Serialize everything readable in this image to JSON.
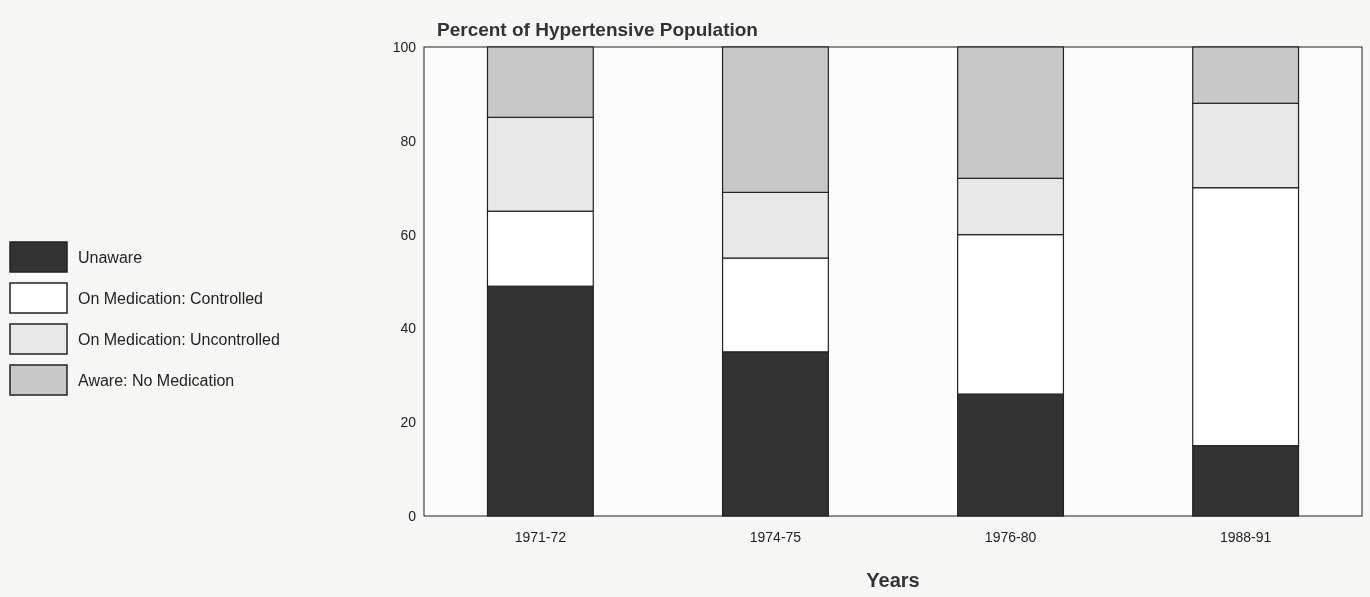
{
  "chart_data": {
    "type": "bar",
    "title": "Percent of Hypertensive Population",
    "xlabel": "Years",
    "categories": [
      "1971-72",
      "1974-75",
      "1976-80",
      "1988-91"
    ],
    "stacked": true,
    "legend": "left",
    "grid": false,
    "ylim": [
      0,
      100
    ],
    "yticks": [
      0,
      20,
      40,
      60,
      80,
      100
    ],
    "series": [
      {
        "name": "Unaware",
        "color": "#333333",
        "values": [
          49,
          35,
          26,
          15
        ]
      },
      {
        "name": "On Medication: Controlled",
        "color": "#ffffff",
        "values": [
          16,
          20,
          34,
          55
        ]
      },
      {
        "name": "On Medication: Uncontrolled",
        "color": "#e8e8e8",
        "values": [
          20,
          14,
          12,
          18
        ]
      },
      {
        "name": "Aware: No Medication",
        "color": "#c8c8c8",
        "values": [
          15,
          31,
          28,
          12
        ]
      }
    ]
  }
}
